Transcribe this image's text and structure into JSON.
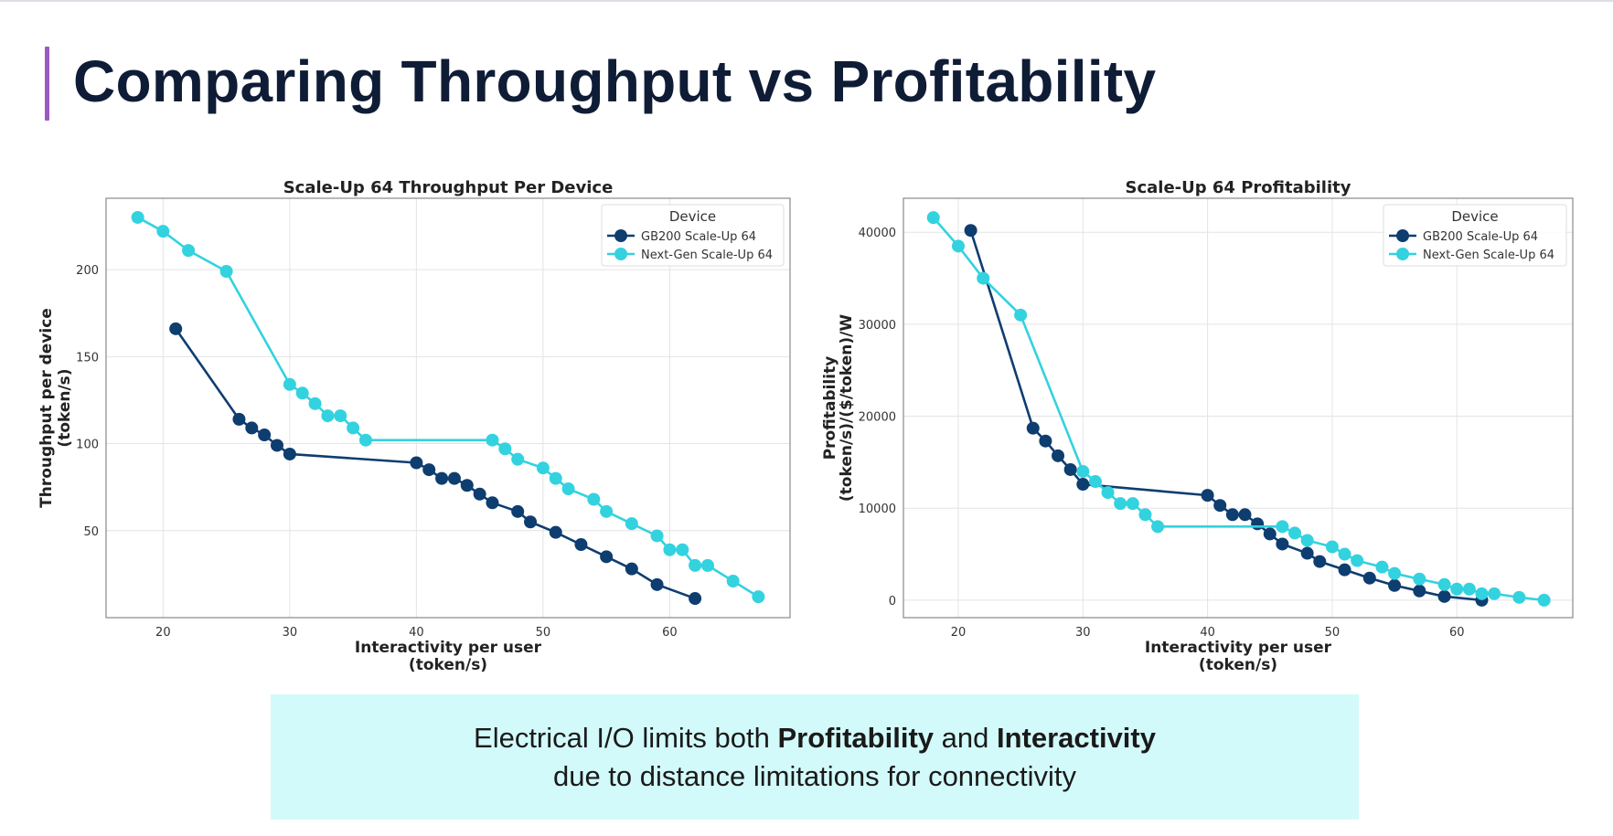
{
  "slide": {
    "title": "Comparing Throughput vs Profitability",
    "accent_color": "#9b59c4",
    "banner": {
      "line1_a": "Electrical I/O limits both ",
      "line1_b": "Profitability",
      "line1_c": " and ",
      "line1_d": "Interactivity",
      "line2": "due to distance limitations for connectivity",
      "background": "#d3fafa"
    }
  },
  "chart_data": [
    {
      "type": "line",
      "title": "Scale-Up 64 Throughput Per Device",
      "xlabel": "Interactivity per user\n(token/s)",
      "ylabel": "Throughput per device\n(token/s)",
      "xlim": [
        15.5,
        69.5
      ],
      "ylim": [
        0,
        241
      ],
      "xticks": [
        20,
        30,
        40,
        50,
        60
      ],
      "yticks": [
        50,
        100,
        150,
        200
      ],
      "grid": true,
      "legend": {
        "title": "Device",
        "placement": "top-right"
      },
      "series": [
        {
          "name": "GB200 Scale-Up 64",
          "color": "#0e3d70",
          "x": [
            21,
            26,
            27,
            28,
            29,
            30,
            40,
            41,
            42,
            43,
            44,
            45,
            46,
            48,
            49,
            51,
            53,
            55,
            57,
            59,
            62
          ],
          "y": [
            166,
            114,
            109,
            105,
            99,
            94,
            89,
            85,
            80,
            80,
            76,
            71,
            66,
            61,
            55,
            49,
            42,
            35,
            28,
            19,
            11
          ]
        },
        {
          "name": "Next-Gen Scale-Up 64",
          "color": "#33d2df",
          "x": [
            18,
            20,
            22,
            25,
            30,
            31,
            32,
            33,
            34,
            35,
            36,
            46,
            47,
            48,
            50,
            51,
            52,
            54,
            55,
            57,
            59,
            60,
            61,
            62,
            63,
            65,
            67
          ],
          "y": [
            230,
            222,
            211,
            199,
            134,
            129,
            123,
            116,
            116,
            109,
            102,
            102,
            97,
            91,
            86,
            80,
            74,
            68,
            61,
            54,
            47,
            39,
            39,
            30,
            30,
            21,
            12
          ]
        }
      ]
    },
    {
      "type": "line",
      "title": "Scale-Up 64 Profitability",
      "xlabel": "Interactivity per user\n(token/s)",
      "ylabel": "Profitability\n(token/s)/($/token)/W",
      "xlim": [
        15.6,
        69.3
      ],
      "ylim": [
        -1900,
        43700
      ],
      "xticks": [
        20,
        30,
        40,
        50,
        60
      ],
      "yticks": [
        0,
        10000,
        20000,
        30000,
        40000
      ],
      "grid": true,
      "legend": {
        "title": "Device",
        "placement": "top-right"
      },
      "series": [
        {
          "name": "GB200 Scale-Up 64",
          "color": "#0e3d70",
          "x": [
            21,
            26,
            27,
            28,
            29,
            30,
            40,
            41,
            42,
            43,
            44,
            45,
            46,
            48,
            49,
            51,
            53,
            55,
            57,
            59,
            62
          ],
          "y": [
            40200,
            18700,
            17300,
            15700,
            14200,
            12600,
            11400,
            10300,
            9300,
            9300,
            8300,
            7200,
            6100,
            5100,
            4200,
            3300,
            2400,
            1600,
            1000,
            400,
            0
          ]
        },
        {
          "name": "Next-Gen Scale-Up 64",
          "color": "#33d2df",
          "x": [
            18,
            20,
            22,
            25,
            30,
            31,
            32,
            33,
            34,
            35,
            36,
            46,
            47,
            48,
            50,
            51,
            52,
            54,
            55,
            57,
            59,
            60,
            61,
            62,
            63,
            65,
            67
          ],
          "y": [
            41600,
            38500,
            35000,
            31000,
            14000,
            12900,
            11700,
            10500,
            10500,
            9300,
            8000,
            8000,
            7300,
            6500,
            5800,
            5000,
            4300,
            3600,
            2900,
            2300,
            1700,
            1200,
            1200,
            700,
            700,
            300,
            0
          ]
        }
      ]
    }
  ]
}
